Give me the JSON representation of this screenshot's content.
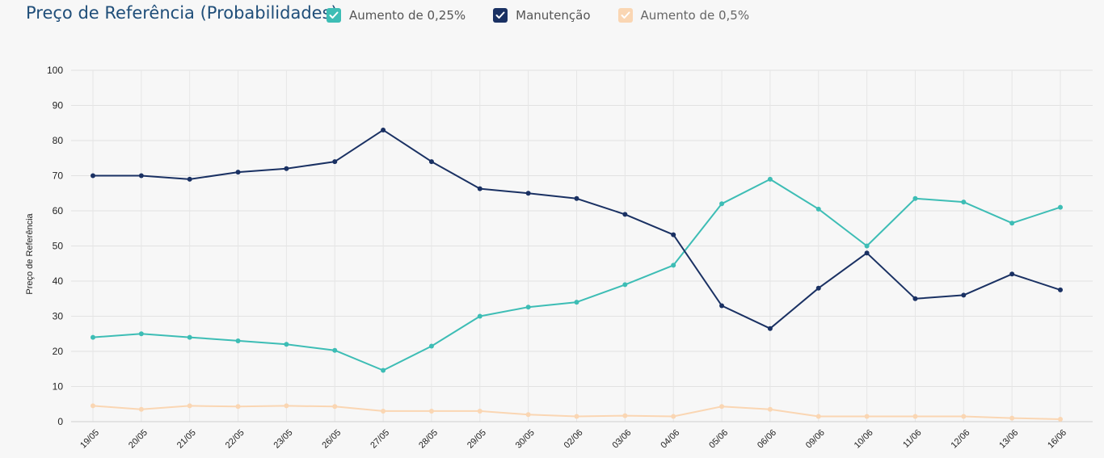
{
  "chart_data": {
    "type": "line",
    "title": "Preço de Referência (Probabilidades)",
    "ylabel": "Preço de Referência",
    "xlabel": "",
    "ylim": [
      0,
      100
    ],
    "yticks": [
      "0",
      "10",
      "20",
      "30",
      "40",
      "50",
      "60",
      "70",
      "80",
      "90",
      "100"
    ],
    "grid": true,
    "legend_position": "top",
    "categories": [
      "19/05",
      "20/05",
      "21/05",
      "22/05",
      "23/05",
      "26/05",
      "27/05",
      "28/05",
      "29/05",
      "30/05",
      "02/06",
      "03/06",
      "04/06",
      "05/06",
      "06/06",
      "09/06",
      "10/06",
      "11/06",
      "12/06",
      "13/06",
      "16/06"
    ],
    "series": [
      {
        "name": "Aumento de 0,25%",
        "color": "#3dbdb5",
        "values": [
          24,
          25,
          24,
          23,
          22,
          20.3,
          14.6,
          21.5,
          30,
          32.6,
          34,
          39,
          44.5,
          62,
          69,
          60.5,
          50,
          63.5,
          62.5,
          56.5,
          61
        ]
      },
      {
        "name": "Manutenção",
        "color": "#1a3163",
        "values": [
          70,
          70,
          69,
          71,
          72,
          74,
          83,
          74,
          66.3,
          65,
          63.5,
          59,
          53.2,
          33,
          26.5,
          38,
          48,
          35,
          36,
          42,
          37.5
        ]
      },
      {
        "name": "Aumento de 0,5%",
        "color": "#fad6b3",
        "values": [
          4.5,
          3.5,
          4.5,
          4.3,
          4.5,
          4.3,
          3,
          3,
          3,
          2,
          1.5,
          1.7,
          1.5,
          4.3,
          3.5,
          1.5,
          1.5,
          1.5,
          1.5,
          1,
          0.7
        ]
      }
    ]
  }
}
